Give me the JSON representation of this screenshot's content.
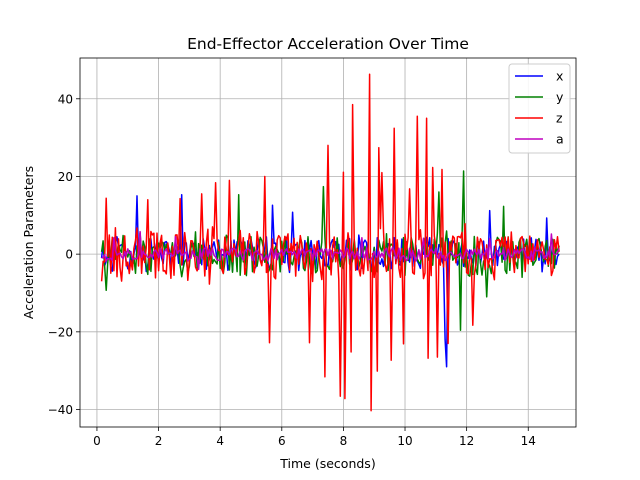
{
  "chart_data": {
    "type": "line",
    "title": "End-Effector Acceleration Over Time",
    "xlabel": "Time (seconds)",
    "ylabel": "Acceleration Parameters",
    "xlim": [
      -0.55,
      15.55
    ],
    "ylim": [
      -44.5,
      50.5
    ],
    "xticks": [
      0,
      2,
      4,
      6,
      8,
      10,
      12,
      14
    ],
    "xtick_labels": [
      "0",
      "2",
      "4",
      "6",
      "8",
      "10",
      "12",
      "14"
    ],
    "yticks": [
      -40,
      -20,
      0,
      20,
      40
    ],
    "ytick_labels": [
      "−40",
      "−20",
      "0",
      "20",
      "40"
    ],
    "grid": true,
    "legend_position": "top-right",
    "x_start": 0.15,
    "x_end": 15.0,
    "x_step": 0.05,
    "series": [
      {
        "name": "x",
        "color": "#0000ff",
        "width": 1.5,
        "amplitude": 4.5,
        "seed": 11,
        "peaks": [
          [
            11.33,
            -29
          ],
          [
            11.3,
            -22
          ],
          [
            2.75,
            15.3
          ],
          [
            1.3,
            15
          ],
          [
            14.6,
            9.3
          ],
          [
            5.7,
            12.6
          ],
          [
            6.35,
            10.8
          ],
          [
            12.75,
            11.2
          ]
        ]
      },
      {
        "name": "y",
        "color": "#008000",
        "width": 1.5,
        "amplitude": 5.5,
        "seed": 23,
        "peaks": [
          [
            0.3,
            -9.3
          ],
          [
            11.9,
            21.4
          ],
          [
            11.8,
            -19.6
          ],
          [
            4.6,
            15.3
          ],
          [
            12.65,
            -11
          ],
          [
            11.1,
            16
          ],
          [
            13.2,
            12.3
          ],
          [
            7.35,
            17.4
          ]
        ]
      },
      {
        "name": "z",
        "color": "#ff0000",
        "width": 1.5,
        "amplitude": 7.0,
        "seed": 37,
        "peaks": [
          [
            8.85,
            46.3
          ],
          [
            8.88,
            -40.3
          ],
          [
            8.3,
            38.5
          ],
          [
            8.05,
            -37.2
          ],
          [
            7.9,
            -36.6
          ],
          [
            7.5,
            28
          ],
          [
            7.4,
            -31.6
          ],
          [
            10.7,
            35
          ],
          [
            10.75,
            -26.8
          ],
          [
            10.4,
            35.5
          ],
          [
            9.65,
            32.4
          ],
          [
            9.55,
            -27.3
          ],
          [
            8.0,
            21.1
          ],
          [
            6.9,
            -22.8
          ],
          [
            5.6,
            -22.8
          ],
          [
            5.45,
            20
          ],
          [
            4.3,
            19
          ],
          [
            3.85,
            18.4
          ],
          [
            3.4,
            15.5
          ],
          [
            1.65,
            14
          ],
          [
            2.7,
            14.3
          ],
          [
            10.15,
            16.8
          ],
          [
            12.2,
            -18.3
          ],
          [
            11.2,
            21.8
          ],
          [
            9.95,
            -23.1
          ],
          [
            9.25,
            21
          ],
          [
            11.4,
            -23
          ],
          [
            0.3,
            14.4
          ],
          [
            0.15,
            -7
          ],
          [
            11.05,
            -26.5
          ],
          [
            10.9,
            22.3
          ],
          [
            8.25,
            -25.2
          ],
          [
            9.1,
            -30.1
          ],
          [
            9.15,
            27.4
          ]
        ]
      },
      {
        "name": "a",
        "color": "#bf00bf",
        "width": 1.5,
        "amplitude": 1.8,
        "seed": 53,
        "peaks": [
          [
            1.4,
            5.8
          ],
          [
            2.55,
            4.5
          ],
          [
            8.6,
            4.2
          ],
          [
            12.75,
            4.0
          ],
          [
            14.75,
            5.2
          ],
          [
            0.55,
            4.2
          ],
          [
            3.3,
            -3.9
          ],
          [
            10.6,
            4.1
          ]
        ]
      }
    ]
  }
}
